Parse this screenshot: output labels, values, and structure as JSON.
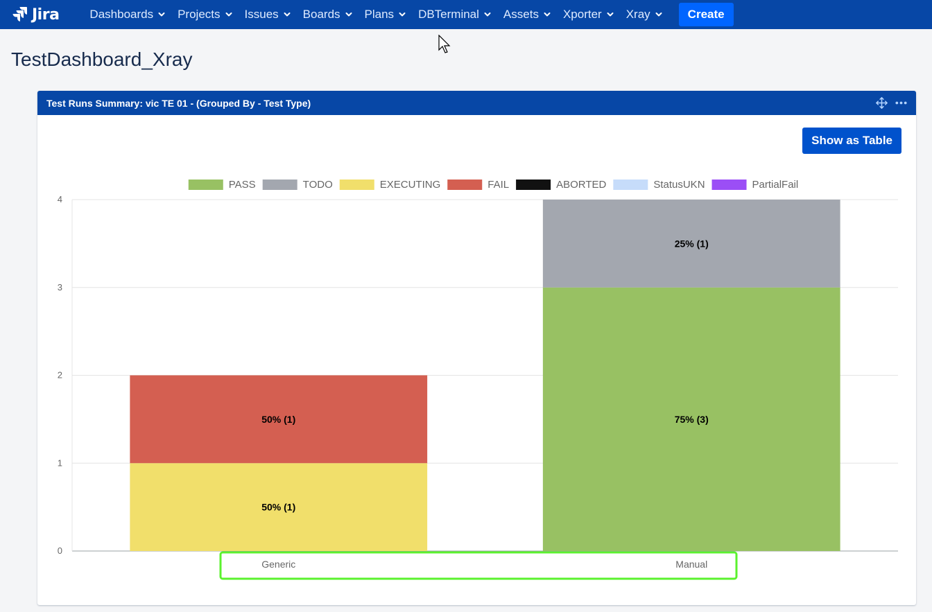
{
  "nav": {
    "logo": "Jira",
    "items": [
      {
        "label": "Dashboards",
        "name": "nav-dashboards"
      },
      {
        "label": "Projects",
        "name": "nav-projects"
      },
      {
        "label": "Issues",
        "name": "nav-issues"
      },
      {
        "label": "Boards",
        "name": "nav-boards"
      },
      {
        "label": "Plans",
        "name": "nav-plans"
      },
      {
        "label": "DBTerminal",
        "name": "nav-dbterminal"
      },
      {
        "label": "Assets",
        "name": "nav-assets"
      },
      {
        "label": "Xporter",
        "name": "nav-xporter"
      },
      {
        "label": "Xray",
        "name": "nav-xray"
      }
    ],
    "create_label": "Create"
  },
  "page": {
    "title": "TestDashboard_Xray"
  },
  "gadget": {
    "title": "Test Runs Summary: vic TE 01 - (Grouped By - Test Type)",
    "show_table_label": "Show as Table"
  },
  "colors": {
    "nav_bg": "#0747a6",
    "create_btn": "#0065ff",
    "primary_btn": "#0052cc"
  },
  "chart_data": {
    "type": "bar",
    "stacked": true,
    "categories": [
      "Generic",
      "Manual"
    ],
    "ylim": [
      0,
      4
    ],
    "yticks": [
      0,
      1,
      2,
      3,
      4
    ],
    "legend_position": "top",
    "grid": true,
    "series": [
      {
        "name": "PASS",
        "color": "#98c163",
        "values": [
          0,
          3
        ],
        "labels": [
          "",
          "75% (3)"
        ]
      },
      {
        "name": "TODO",
        "color": "#a3a7af",
        "values": [
          0,
          1
        ],
        "labels": [
          "",
          "25% (1)"
        ]
      },
      {
        "name": "EXECUTING",
        "color": "#f1df6b",
        "values": [
          1,
          0
        ],
        "labels": [
          "50% (1)",
          ""
        ]
      },
      {
        "name": "FAIL",
        "color": "#d45f51",
        "values": [
          1,
          0
        ],
        "labels": [
          "50% (1)",
          ""
        ]
      },
      {
        "name": "ABORTED",
        "color": "#111111",
        "values": [
          0,
          0
        ],
        "labels": [
          "",
          ""
        ]
      },
      {
        "name": "StatusUKN",
        "color": "#c6dcfa",
        "values": [
          0,
          0
        ],
        "labels": [
          "",
          ""
        ]
      },
      {
        "name": "PartialFail",
        "color": "#9b4ef6",
        "values": [
          0,
          0
        ],
        "labels": [
          "",
          ""
        ]
      }
    ],
    "highlight_box_color": "#5bf22e"
  }
}
